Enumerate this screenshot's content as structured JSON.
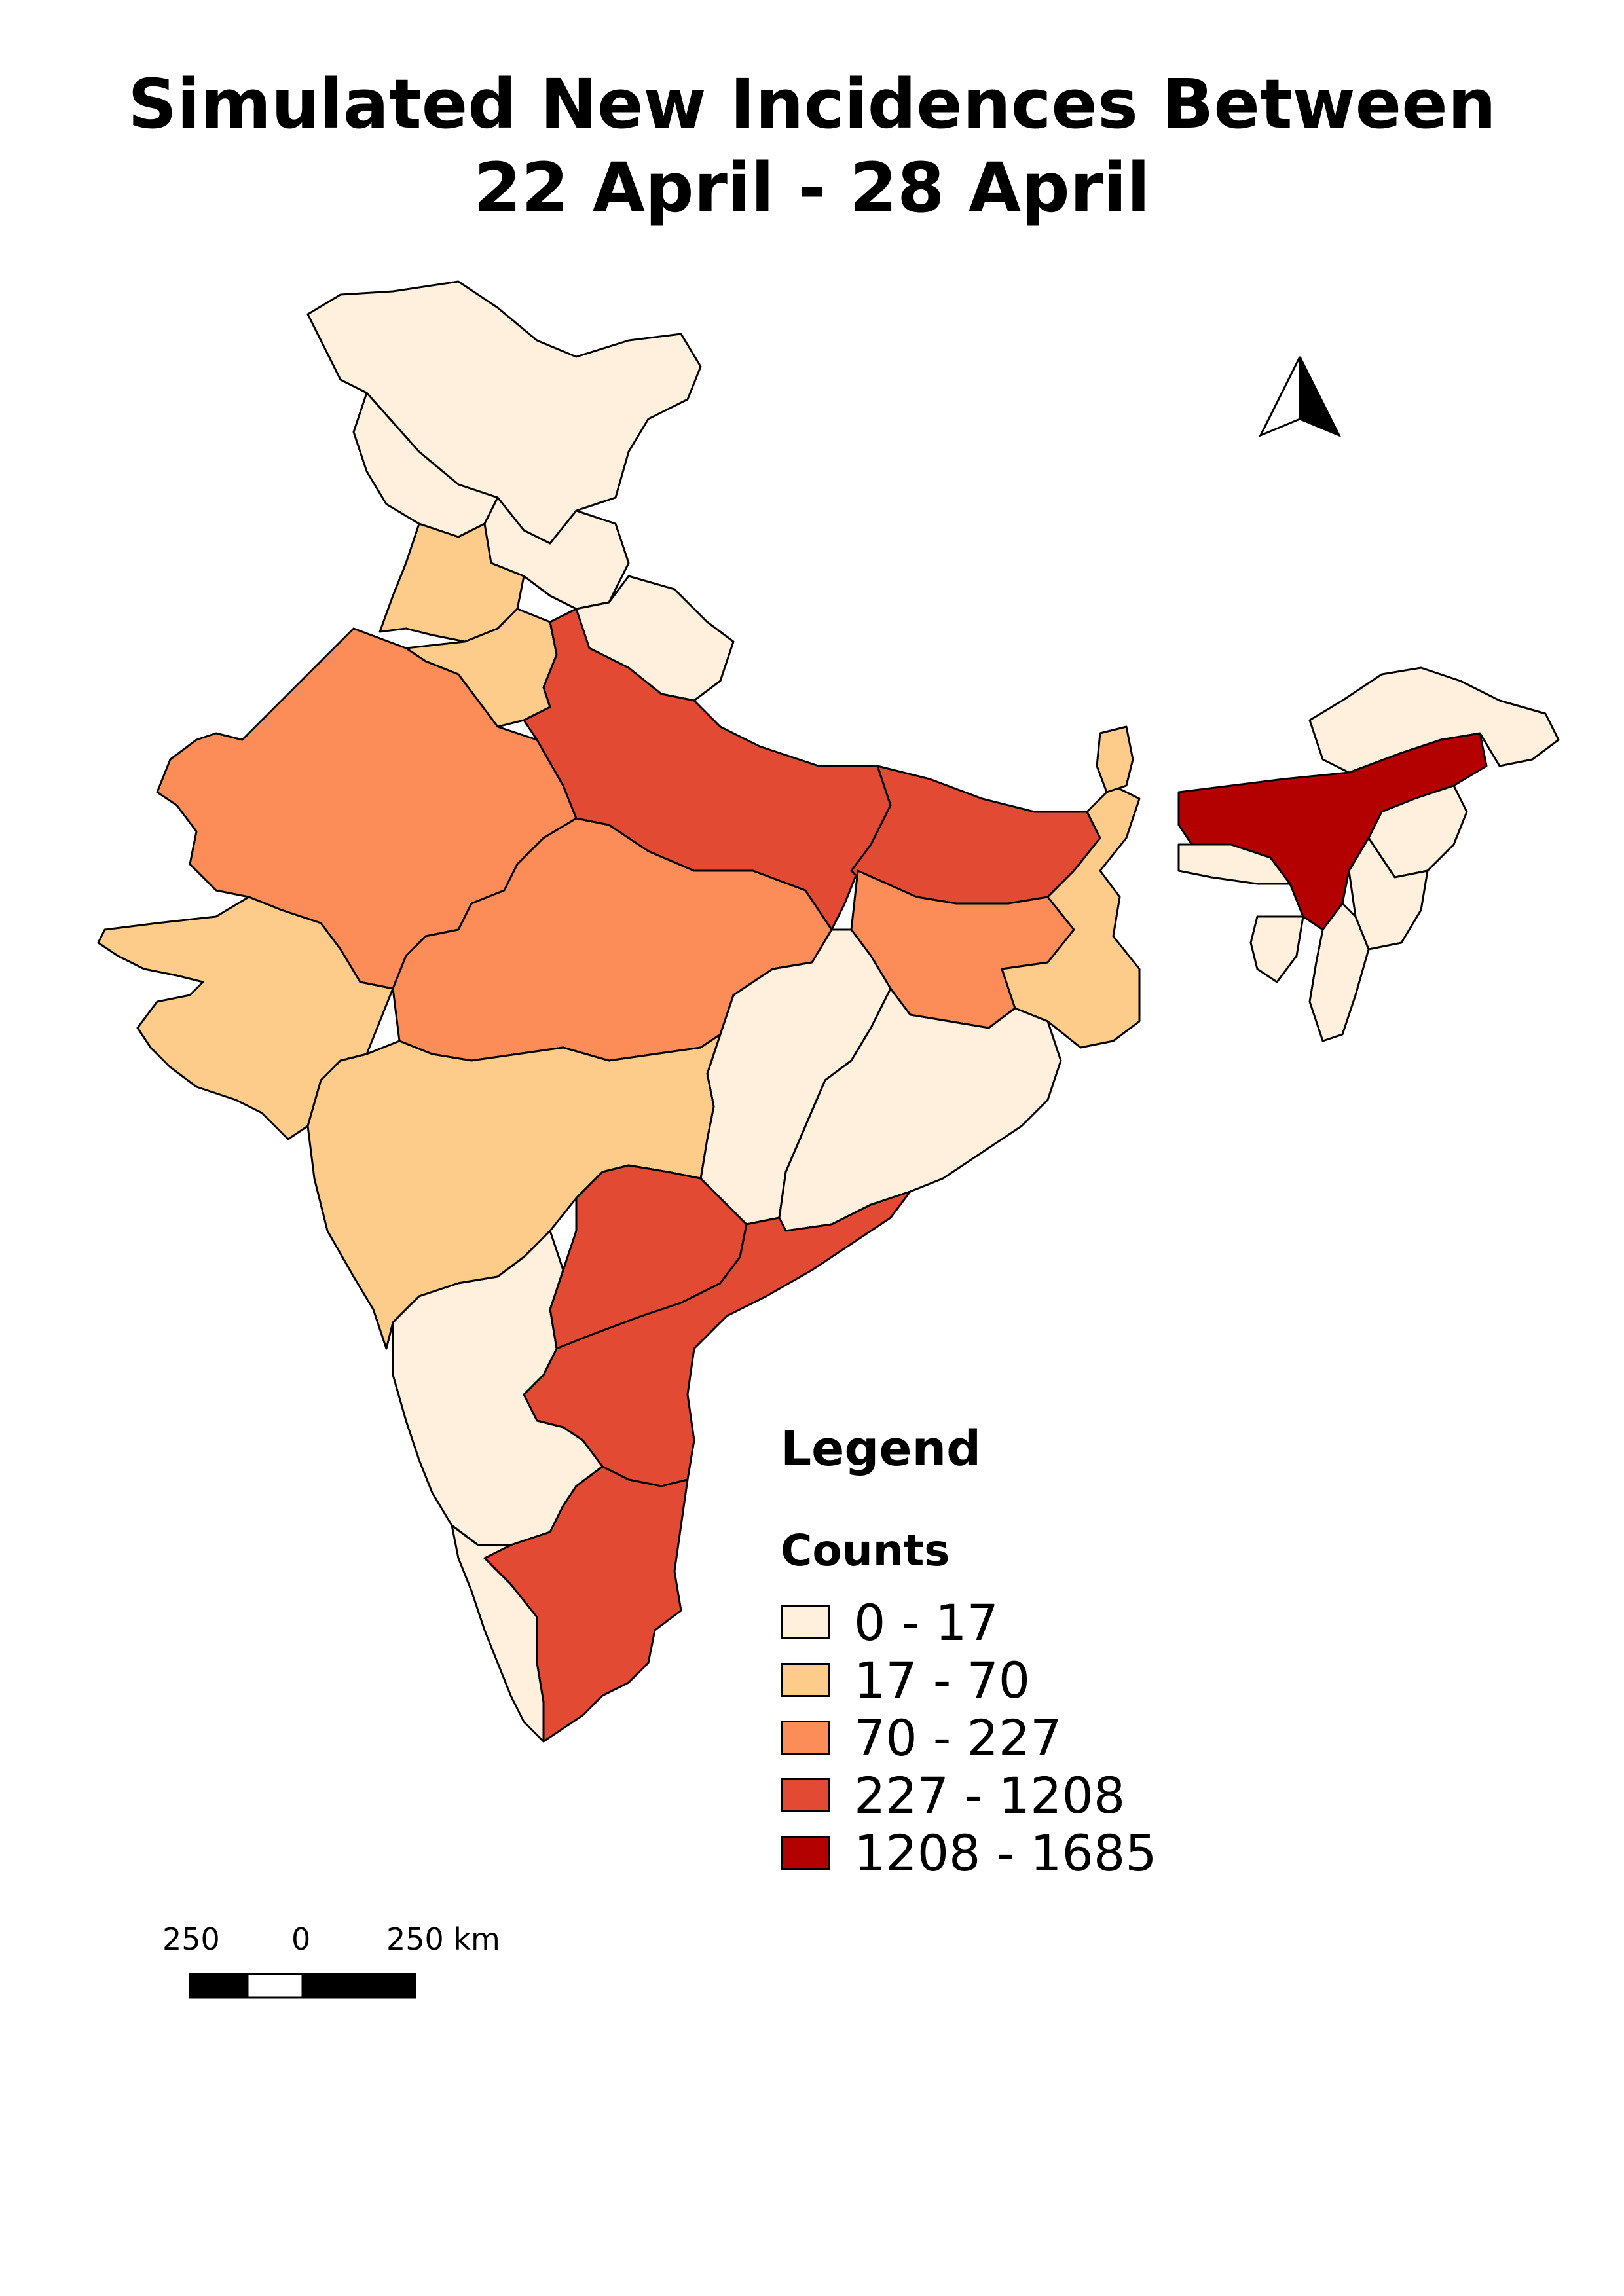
{
  "title_line1": "Simulated New Incidences Between",
  "title_line2": "22 April - 28 April",
  "legend": {
    "title": "Legend",
    "subtitle": "Counts",
    "classes": [
      {
        "label": "0 - 17",
        "color": "#fff0de"
      },
      {
        "label": "17 - 70",
        "color": "#fdcc8a"
      },
      {
        "label": "70 - 227",
        "color": "#fc8d59"
      },
      {
        "label": "227 - 1208",
        "color": "#e34a33"
      },
      {
        "label": "1208 - 1685",
        "color": "#b30000"
      }
    ]
  },
  "scale_bar": {
    "left": "250",
    "mid": "0",
    "right": "250 km"
  },
  "north_arrow_icon": "north-arrow-icon"
}
